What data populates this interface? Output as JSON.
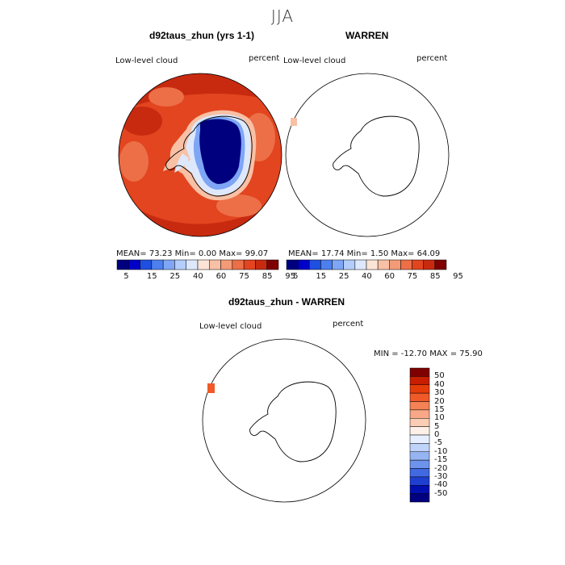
{
  "season": "JJA",
  "panel1": {
    "title": "d92taus_zhun (yrs 1-1)",
    "variable": "Low-level cloud",
    "units": "percent",
    "stats": "MEAN=  73.23  Min=    0.00  Max=  99.07",
    "colorbar_labels": [
      "5",
      "15",
      "25",
      "40",
      "60",
      "75",
      "85",
      "95"
    ]
  },
  "panel2": {
    "title": "WARREN",
    "variable": "Low-level cloud",
    "units": "percent",
    "stats": "MEAN=  17.74  Min=    1.50  Max=  64.09",
    "colorbar_labels": [
      "5",
      "15",
      "25",
      "40",
      "60",
      "75",
      "85",
      "95"
    ]
  },
  "panel3": {
    "title": "d92taus_zhun - WARREN",
    "variable": "Low-level cloud",
    "units": "percent",
    "minmax": "MIN = -12.70  MAX =  75.90",
    "colorbar_labels": [
      "50",
      "40",
      "30",
      "20",
      "15",
      "10",
      "5",
      "0",
      "-5",
      "-10",
      "-15",
      "-20",
      "-30",
      "-40",
      "-50"
    ]
  },
  "colors": {
    "abs_scale": [
      "#00007f",
      "#0000c8",
      "#1f4fe0",
      "#4d7fee",
      "#7ea6f5",
      "#b4cdfa",
      "#dde8fc",
      "#fbe3d6",
      "#f8c0a4",
      "#f39a76",
      "#ec6f47",
      "#e2451f",
      "#c82a10",
      "#7f0000"
    ],
    "diff_scale": [
      "#7f0000",
      "#c81e00",
      "#e63c0a",
      "#f05a28",
      "#f48255",
      "#f8a887",
      "#fbcdb5",
      "#fdf0e8",
      "#e6efff",
      "#c0d4fa",
      "#96b4f2",
      "#6d93ec",
      "#4169e1",
      "#1f3fd0",
      "#0010b0",
      "#000080"
    ]
  }
}
